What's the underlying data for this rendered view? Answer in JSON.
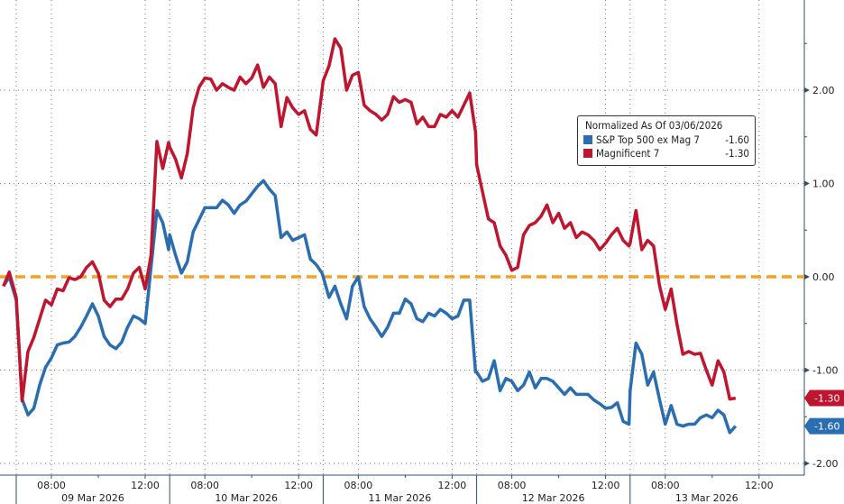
{
  "legend": {
    "title": "Normalized As Of 03/06/2026",
    "items": [
      {
        "name": "S&P Top 500 ex Mag 7",
        "value": "-1.60",
        "color": "#2a6db0"
      },
      {
        "name": "Magnificent 7",
        "value": "-1.30",
        "color": "#c0152f"
      }
    ]
  },
  "chart_data": {
    "type": "line",
    "title": "",
    "xlabel": "",
    "ylabel": "",
    "ylim": [
      -2.2,
      2.9
    ],
    "yticks": [
      "2.00",
      "1.00",
      "0.00",
      "-1.00",
      "-2.00"
    ],
    "ytick_values": [
      2,
      1,
      0,
      -1,
      -2
    ],
    "xtick_labels": [
      "08:00",
      "12:00"
    ],
    "date_labels": [
      "09 Mar 2026",
      "10 Mar 2026",
      "11 Mar 2026",
      "12 Mar 2026",
      "13 Mar 2026"
    ],
    "grid": true,
    "reference_line": {
      "value": 0,
      "color": "#f4a124",
      "style": "dashed"
    },
    "legend_position": "top-right",
    "last_value_badges": [
      "-1.30",
      "-1.60"
    ],
    "x": [
      "06 Mar 12:30",
      "06 Mar 12:45",
      "09 Mar 06:30",
      "09 Mar 06:45",
      "09 Mar 07:00",
      "09 Mar 07:15",
      "09 Mar 07:30",
      "09 Mar 07:45",
      "09 Mar 08:00",
      "09 Mar 08:15",
      "09 Mar 08:30",
      "09 Mar 08:45",
      "09 Mar 09:00",
      "09 Mar 09:15",
      "09 Mar 09:30",
      "09 Mar 09:45",
      "09 Mar 10:00",
      "09 Mar 10:15",
      "09 Mar 10:30",
      "09 Mar 10:45",
      "09 Mar 11:00",
      "09 Mar 11:15",
      "09 Mar 11:30",
      "09 Mar 11:45",
      "09 Mar 12:00",
      "09 Mar 12:15",
      "09 Mar 12:30",
      "09 Mar 12:45",
      "09 Mar 13:00",
      "10 Mar 06:30",
      "10 Mar 06:45",
      "10 Mar 07:00",
      "10 Mar 07:15",
      "10 Mar 07:30",
      "10 Mar 07:45",
      "10 Mar 08:00",
      "10 Mar 08:15",
      "10 Mar 08:30",
      "10 Mar 08:45",
      "10 Mar 09:00",
      "10 Mar 09:15",
      "10 Mar 09:30",
      "10 Mar 09:45",
      "10 Mar 10:00",
      "10 Mar 10:15",
      "10 Mar 10:30",
      "10 Mar 10:45",
      "10 Mar 11:00",
      "10 Mar 11:15",
      "10 Mar 11:30",
      "10 Mar 11:45",
      "10 Mar 12:00",
      "10 Mar 12:15",
      "10 Mar 12:30",
      "10 Mar 12:45",
      "10 Mar 13:00",
      "11 Mar 06:30",
      "11 Mar 06:45",
      "11 Mar 07:00",
      "11 Mar 07:15",
      "11 Mar 07:30",
      "11 Mar 07:45",
      "11 Mar 08:00",
      "11 Mar 08:15",
      "11 Mar 08:30",
      "11 Mar 08:45",
      "11 Mar 09:00",
      "11 Mar 09:15",
      "11 Mar 09:30",
      "11 Mar 09:45",
      "11 Mar 10:00",
      "11 Mar 10:15",
      "11 Mar 10:30",
      "11 Mar 10:45",
      "11 Mar 11:00",
      "11 Mar 11:15",
      "11 Mar 11:30",
      "11 Mar 11:45",
      "11 Mar 12:00",
      "11 Mar 12:15",
      "11 Mar 12:30",
      "11 Mar 12:45",
      "11 Mar 13:00",
      "12 Mar 06:30",
      "12 Mar 06:45",
      "12 Mar 07:00",
      "12 Mar 07:15",
      "12 Mar 07:30",
      "12 Mar 07:45",
      "12 Mar 08:00",
      "12 Mar 08:15",
      "12 Mar 08:30",
      "12 Mar 08:45",
      "12 Mar 09:00",
      "12 Mar 09:15",
      "12 Mar 09:30",
      "12 Mar 09:45",
      "12 Mar 10:00",
      "12 Mar 10:15",
      "12 Mar 10:30",
      "12 Mar 10:45",
      "12 Mar 11:00",
      "12 Mar 11:15",
      "12 Mar 11:30",
      "12 Mar 11:45",
      "12 Mar 12:00",
      "12 Mar 12:15",
      "12 Mar 12:30",
      "12 Mar 12:45",
      "12 Mar 13:00",
      "13 Mar 06:30",
      "13 Mar 06:45",
      "13 Mar 07:00",
      "13 Mar 07:15",
      "13 Mar 07:30",
      "13 Mar 07:45",
      "13 Mar 08:00",
      "13 Mar 08:15",
      "13 Mar 08:30",
      "13 Mar 08:45",
      "13 Mar 09:00",
      "13 Mar 09:15",
      "13 Mar 09:30",
      "13 Mar 09:45",
      "13 Mar 10:00",
      "13 Mar 10:15",
      "13 Mar 10:30",
      "13 Mar 10:45",
      "13 Mar 11:00"
    ],
    "series": [
      {
        "name": "S&P Top 500 ex Mag 7",
        "color": "#2a6db0",
        "values": [
          -0.1,
          0.0,
          -0.25,
          -1.31,
          -1.48,
          -1.41,
          -1.16,
          -0.97,
          -0.87,
          -0.73,
          -0.71,
          -0.7,
          -0.64,
          -0.54,
          -0.42,
          -0.29,
          -0.42,
          -0.64,
          -0.73,
          -0.77,
          -0.7,
          -0.54,
          -0.42,
          -0.45,
          -0.5,
          0.1,
          0.71,
          0.58,
          0.29,
          0.45,
          0.23,
          0.04,
          0.16,
          0.48,
          0.61,
          0.74,
          0.74,
          0.74,
          0.82,
          0.77,
          0.68,
          0.77,
          0.81,
          0.89,
          0.97,
          1.03,
          0.94,
          0.87,
          0.42,
          0.48,
          0.39,
          0.42,
          0.45,
          0.19,
          0.13,
          0.04,
          0.0,
          -0.22,
          -0.1,
          -0.29,
          -0.45,
          -0.1,
          0.0,
          -0.32,
          -0.45,
          -0.54,
          -0.64,
          -0.54,
          -0.39,
          -0.39,
          -0.24,
          -0.29,
          -0.45,
          -0.48,
          -0.39,
          -0.42,
          -0.35,
          -0.39,
          -0.45,
          -0.42,
          -0.25,
          -0.25,
          -1.02,
          -1.02,
          -1.12,
          -1.09,
          -0.9,
          -1.22,
          -1.09,
          -1.12,
          -1.22,
          -1.16,
          -1.02,
          -1.19,
          -1.09,
          -1.09,
          -1.12,
          -1.19,
          -1.26,
          -1.19,
          -1.26,
          -1.26,
          -1.26,
          -1.32,
          -1.36,
          -1.41,
          -1.4,
          -1.35,
          -1.55,
          -1.58,
          -1.22,
          -0.71,
          -0.83,
          -1.16,
          -1.02,
          -1.31,
          -1.58,
          -1.38,
          -1.58,
          -1.6,
          -1.58,
          -1.58,
          -1.51,
          -1.48,
          -1.51,
          -1.43,
          -1.48,
          -1.67,
          -1.6
        ]
      },
      {
        "name": "Magnificent 7",
        "color": "#c0152f",
        "values": [
          -0.1,
          0.05,
          -0.22,
          -1.33,
          -0.8,
          -0.65,
          -0.45,
          -0.25,
          -0.3,
          -0.13,
          -0.15,
          -0.01,
          -0.03,
          0.0,
          0.1,
          0.16,
          0.04,
          -0.25,
          -0.32,
          -0.24,
          -0.24,
          -0.13,
          0.04,
          0.1,
          -0.13,
          0.23,
          1.45,
          1.16,
          1.44,
          1.39,
          1.26,
          1.06,
          1.32,
          1.81,
          2.03,
          2.13,
          2.12,
          2.0,
          2.07,
          2.03,
          2.0,
          2.14,
          2.07,
          2.13,
          2.27,
          2.03,
          2.14,
          2.07,
          1.61,
          1.92,
          1.81,
          1.74,
          1.78,
          1.58,
          1.52,
          2.0,
          2.1,
          2.26,
          2.55,
          2.45,
          2.0,
          2.16,
          2.19,
          1.84,
          1.78,
          1.74,
          1.68,
          1.74,
          1.93,
          1.87,
          1.9,
          1.87,
          1.64,
          1.71,
          1.61,
          1.61,
          1.74,
          1.71,
          1.78,
          1.71,
          1.84,
          1.97,
          1.55,
          1.2,
          0.91,
          0.62,
          0.58,
          0.33,
          0.23,
          0.07,
          0.1,
          0.45,
          0.55,
          0.58,
          0.65,
          0.77,
          0.58,
          0.68,
          0.52,
          0.58,
          0.42,
          0.48,
          0.45,
          0.39,
          0.29,
          0.36,
          0.45,
          0.52,
          0.39,
          0.33,
          0.36,
          0.71,
          0.29,
          0.39,
          0.33,
          -0.09,
          -0.35,
          -0.13,
          -0.51,
          -0.83,
          -0.8,
          -0.83,
          -0.82,
          -1.0,
          -1.16,
          -0.9,
          -1.02,
          -1.31,
          -1.3
        ]
      }
    ]
  }
}
